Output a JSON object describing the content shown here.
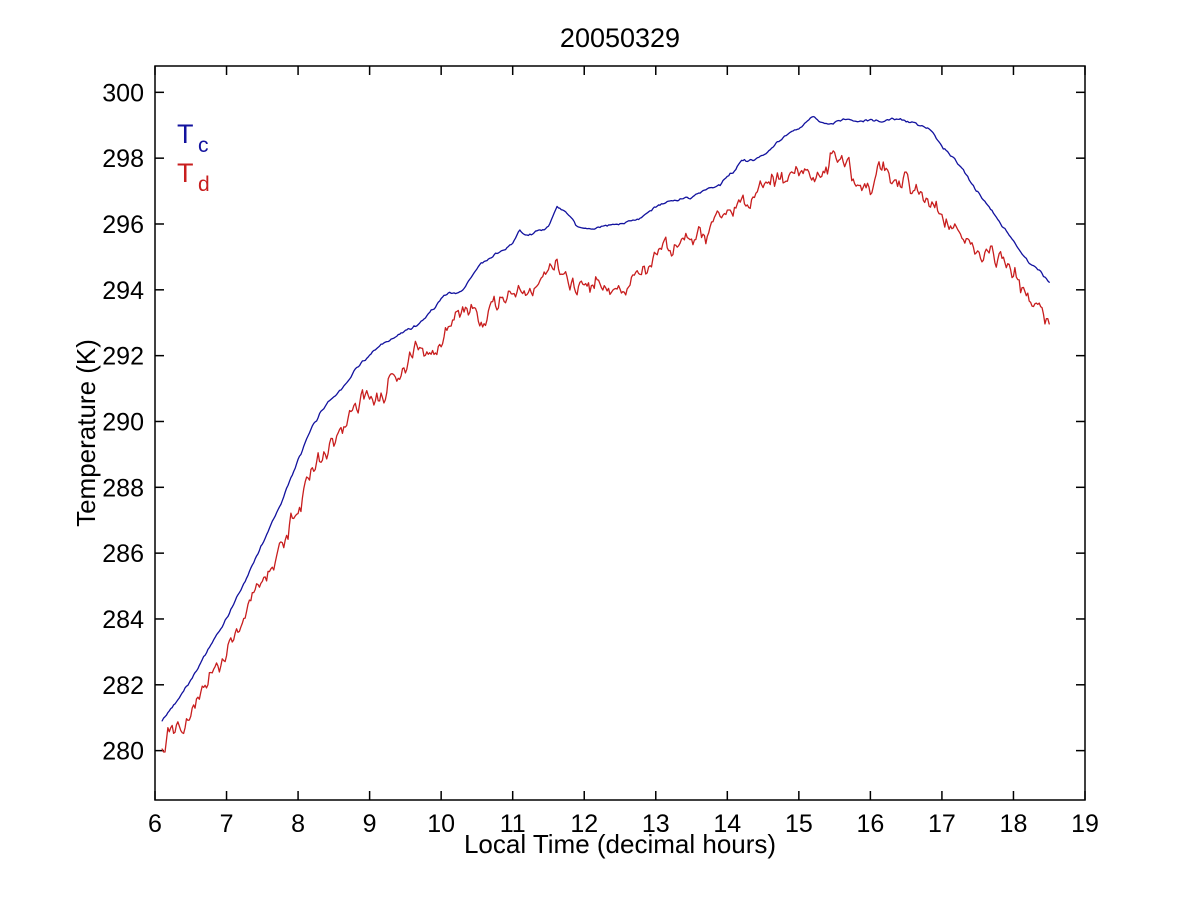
{
  "chart_data": {
    "type": "line",
    "title": "20050329",
    "xlabel": "Local Time (decimal hours)",
    "ylabel": "Temperature (K)",
    "xlim": [
      6,
      19
    ],
    "ylim": [
      278.5,
      300.8
    ],
    "x_ticks": [
      6,
      7,
      8,
      9,
      10,
      11,
      12,
      13,
      14,
      15,
      16,
      17,
      18,
      19
    ],
    "y_ticks": [
      280,
      282,
      284,
      286,
      288,
      290,
      292,
      294,
      296,
      298,
      300
    ],
    "grid": false,
    "legend_position": "top-left-inside",
    "axis_color": "#000000",
    "noise_seed": 42,
    "sample_step_hours": 0.02,
    "legend": [
      {
        "label": "T",
        "sub": "c",
        "color": "#12129e"
      },
      {
        "label": "T",
        "sub": "d",
        "color": "#c81e1e"
      }
    ],
    "series": [
      {
        "name": "Tc",
        "color": "#12129e",
        "noise_amplitude": 0.03,
        "walk_step": 0.03,
        "walk_max": 0.07,
        "anchors": [
          [
            6.1,
            280.9
          ],
          [
            6.3,
            281.5
          ],
          [
            6.5,
            282.2
          ],
          [
            6.75,
            283.1
          ],
          [
            7.0,
            284.0
          ],
          [
            7.25,
            285.1
          ],
          [
            7.5,
            286.3
          ],
          [
            7.75,
            287.5
          ],
          [
            8.0,
            288.8
          ],
          [
            8.2,
            289.8
          ],
          [
            8.38,
            290.5
          ],
          [
            8.6,
            291.0
          ],
          [
            8.87,
            291.8
          ],
          [
            9.1,
            292.2
          ],
          [
            9.4,
            292.6
          ],
          [
            9.7,
            293.0
          ],
          [
            9.9,
            293.5
          ],
          [
            10.05,
            293.85
          ],
          [
            10.3,
            293.95
          ],
          [
            10.55,
            294.8
          ],
          [
            10.8,
            295.1
          ],
          [
            11.0,
            295.45
          ],
          [
            11.1,
            295.85
          ],
          [
            11.22,
            295.6
          ],
          [
            11.35,
            295.75
          ],
          [
            11.5,
            295.9
          ],
          [
            11.62,
            296.5
          ],
          [
            11.75,
            296.3
          ],
          [
            11.9,
            295.9
          ],
          [
            12.1,
            295.85
          ],
          [
            12.3,
            295.9
          ],
          [
            12.5,
            295.95
          ],
          [
            12.7,
            296.1
          ],
          [
            12.9,
            296.4
          ],
          [
            13.1,
            296.6
          ],
          [
            13.3,
            296.7
          ],
          [
            13.5,
            296.85
          ],
          [
            13.7,
            297.1
          ],
          [
            13.9,
            297.25
          ],
          [
            14.1,
            297.6
          ],
          [
            14.2,
            298.0
          ],
          [
            14.35,
            297.9
          ],
          [
            14.5,
            298.1
          ],
          [
            14.7,
            298.5
          ],
          [
            14.9,
            298.8
          ],
          [
            15.0,
            298.95
          ],
          [
            15.2,
            299.25
          ],
          [
            15.35,
            299.0
          ],
          [
            15.5,
            299.1
          ],
          [
            15.65,
            299.15
          ],
          [
            15.8,
            299.05
          ],
          [
            16.0,
            299.15
          ],
          [
            16.15,
            299.1
          ],
          [
            16.3,
            299.2
          ],
          [
            16.45,
            299.15
          ],
          [
            16.6,
            299.05
          ],
          [
            16.8,
            298.85
          ],
          [
            17.0,
            298.4
          ],
          [
            17.2,
            297.9
          ],
          [
            17.4,
            297.3
          ],
          [
            17.6,
            296.7
          ],
          [
            17.8,
            296.1
          ],
          [
            18.0,
            295.5
          ],
          [
            18.2,
            294.9
          ],
          [
            18.35,
            294.6
          ],
          [
            18.5,
            294.2
          ]
        ]
      },
      {
        "name": "Td",
        "color": "#c81e1e",
        "noise_amplitude": 0.26,
        "walk_step": 0.16,
        "walk_max": 0.45,
        "anchors": [
          [
            6.1,
            280.0
          ],
          [
            6.3,
            280.6
          ],
          [
            6.5,
            281.2
          ],
          [
            6.75,
            282.1
          ],
          [
            7.0,
            283.0
          ],
          [
            7.25,
            284.1
          ],
          [
            7.5,
            285.2
          ],
          [
            7.75,
            286.3
          ],
          [
            8.0,
            287.4
          ],
          [
            8.2,
            288.3
          ],
          [
            8.38,
            289.0
          ],
          [
            8.6,
            289.6
          ],
          [
            8.87,
            290.5
          ],
          [
            9.15,
            291.0
          ],
          [
            9.4,
            291.5
          ],
          [
            9.64,
            292.3
          ],
          [
            9.8,
            292.1
          ],
          [
            10.0,
            292.3
          ],
          [
            10.3,
            293.2
          ],
          [
            10.55,
            293.3
          ],
          [
            10.9,
            293.8
          ],
          [
            11.1,
            294.2
          ],
          [
            11.35,
            294.2
          ],
          [
            11.62,
            295.1
          ],
          [
            11.9,
            294.2
          ],
          [
            12.2,
            294.3
          ],
          [
            12.5,
            294.5
          ],
          [
            12.8,
            294.7
          ],
          [
            13.1,
            295.2
          ],
          [
            13.4,
            295.3
          ],
          [
            13.7,
            295.6
          ],
          [
            14.0,
            296.2
          ],
          [
            14.3,
            296.5
          ],
          [
            14.6,
            297.0
          ],
          [
            14.9,
            297.4
          ],
          [
            15.2,
            297.5
          ],
          [
            15.55,
            297.9
          ],
          [
            15.9,
            297.5
          ],
          [
            16.2,
            297.7
          ],
          [
            16.5,
            297.3
          ],
          [
            16.8,
            296.9
          ],
          [
            17.0,
            296.5
          ],
          [
            17.3,
            295.8
          ],
          [
            17.6,
            295.3
          ],
          [
            17.9,
            294.6
          ],
          [
            18.1,
            294.1
          ],
          [
            18.3,
            293.4
          ],
          [
            18.5,
            292.6
          ]
        ]
      }
    ]
  }
}
